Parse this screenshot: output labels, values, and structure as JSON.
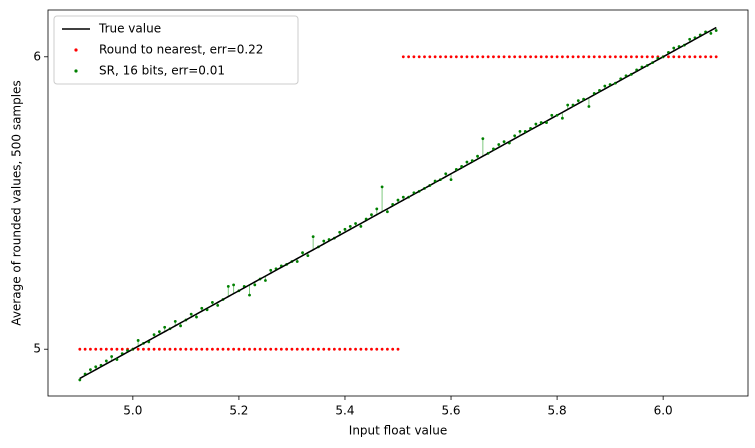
{
  "chart_data": {
    "type": "scatter",
    "x_label": "Input float value",
    "y_label": "Average of rounded values, 500 samples",
    "x": [
      4.9,
      4.91,
      4.92,
      4.93,
      4.94,
      4.95,
      4.96,
      4.97,
      4.98,
      4.99,
      5.0,
      5.01,
      5.02,
      5.03,
      5.04,
      5.05,
      5.06,
      5.07,
      5.08,
      5.09,
      5.1,
      5.11,
      5.12,
      5.13,
      5.14,
      5.15,
      5.16,
      5.17,
      5.18,
      5.19,
      5.2,
      5.21,
      5.22,
      5.23,
      5.24,
      5.25,
      5.26,
      5.27,
      5.28,
      5.29,
      5.3,
      5.31,
      5.32,
      5.33,
      5.34,
      5.35,
      5.36,
      5.37,
      5.38,
      5.39,
      5.4,
      5.41,
      5.42,
      5.43,
      5.44,
      5.45,
      5.46,
      5.47,
      5.48,
      5.49,
      5.5,
      5.51,
      5.52,
      5.53,
      5.54,
      5.55,
      5.56,
      5.57,
      5.58,
      5.59,
      5.6,
      5.61,
      5.62,
      5.63,
      5.64,
      5.65,
      5.66,
      5.67,
      5.68,
      5.69,
      5.7,
      5.71,
      5.72,
      5.73,
      5.74,
      5.75,
      5.76,
      5.77,
      5.78,
      5.79,
      5.8,
      5.81,
      5.82,
      5.83,
      5.84,
      5.85,
      5.86,
      5.87,
      5.88,
      5.89,
      5.9,
      5.91,
      5.92,
      5.93,
      5.94,
      5.95,
      5.96,
      5.97,
      5.98,
      5.99,
      6.0,
      6.01,
      6.02,
      6.03,
      6.04,
      6.05,
      6.06,
      6.07,
      6.08,
      6.09,
      6.1
    ],
    "series": [
      {
        "name": "True value",
        "color": "#000000",
        "style": "line",
        "values": [
          4.9,
          4.91,
          4.92,
          4.93,
          4.94,
          4.95,
          4.96,
          4.97,
          4.98,
          4.99,
          5.0,
          5.01,
          5.02,
          5.03,
          5.04,
          5.05,
          5.06,
          5.07,
          5.08,
          5.09,
          5.1,
          5.11,
          5.12,
          5.13,
          5.14,
          5.15,
          5.16,
          5.17,
          5.18,
          5.19,
          5.2,
          5.21,
          5.22,
          5.23,
          5.24,
          5.25,
          5.26,
          5.27,
          5.28,
          5.29,
          5.3,
          5.31,
          5.32,
          5.33,
          5.34,
          5.35,
          5.36,
          5.37,
          5.38,
          5.39,
          5.4,
          5.41,
          5.42,
          5.43,
          5.44,
          5.45,
          5.46,
          5.47,
          5.48,
          5.49,
          5.5,
          5.51,
          5.52,
          5.53,
          5.54,
          5.55,
          5.56,
          5.57,
          5.58,
          5.59,
          5.6,
          5.61,
          5.62,
          5.63,
          5.64,
          5.65,
          5.66,
          5.67,
          5.68,
          5.69,
          5.7,
          5.71,
          5.72,
          5.73,
          5.74,
          5.75,
          5.76,
          5.77,
          5.78,
          5.79,
          5.8,
          5.81,
          5.82,
          5.83,
          5.84,
          5.85,
          5.86,
          5.87,
          5.88,
          5.89,
          5.9,
          5.91,
          5.92,
          5.93,
          5.94,
          5.95,
          5.96,
          5.97,
          5.98,
          5.99,
          6.0,
          6.01,
          6.02,
          6.03,
          6.04,
          6.05,
          6.06,
          6.07,
          6.08,
          6.09,
          6.1
        ]
      },
      {
        "name": "Round to nearest, err=0.22",
        "color": "#ff0000",
        "style": "dots",
        "values": [
          5,
          5,
          5,
          5,
          5,
          5,
          5,
          5,
          5,
          5,
          5,
          5,
          5,
          5,
          5,
          5,
          5,
          5,
          5,
          5,
          5,
          5,
          5,
          5,
          5,
          5,
          5,
          5,
          5,
          5,
          5,
          5,
          5,
          5,
          5,
          5,
          5,
          5,
          5,
          5,
          5,
          5,
          5,
          5,
          5,
          5,
          5,
          5,
          5,
          5,
          5,
          5,
          5,
          5,
          5,
          5,
          5,
          5,
          5,
          5,
          5,
          6,
          6,
          6,
          6,
          6,
          6,
          6,
          6,
          6,
          6,
          6,
          6,
          6,
          6,
          6,
          6,
          6,
          6,
          6,
          6,
          6,
          6,
          6,
          6,
          6,
          6,
          6,
          6,
          6,
          6,
          6,
          6,
          6,
          6,
          6,
          6,
          6,
          6,
          6,
          6,
          6,
          6,
          6,
          6,
          6,
          6,
          6,
          6,
          6,
          6,
          6,
          6,
          6,
          6,
          6,
          6,
          6,
          6,
          6,
          6
        ]
      },
      {
        "name": "SR, 16 bits, err=0.01",
        "color": "#008000",
        "style": "dots",
        "values": [
          4.895,
          4.915,
          4.93,
          4.94,
          4.945,
          4.96,
          4.975,
          4.965,
          4.985,
          4.995,
          5.0,
          5.03,
          5.02,
          5.025,
          5.05,
          5.06,
          5.075,
          5.07,
          5.095,
          5.08,
          5.1,
          5.12,
          5.11,
          5.14,
          5.135,
          5.16,
          5.15,
          5.17,
          5.215,
          5.22,
          5.2,
          5.215,
          5.185,
          5.22,
          5.24,
          5.235,
          5.27,
          5.275,
          5.285,
          5.29,
          5.3,
          5.3,
          5.33,
          5.32,
          5.385,
          5.35,
          5.37,
          5.375,
          5.38,
          5.4,
          5.41,
          5.42,
          5.43,
          5.42,
          5.445,
          5.46,
          5.48,
          5.555,
          5.47,
          5.495,
          5.51,
          5.52,
          5.52,
          5.535,
          5.54,
          5.55,
          5.56,
          5.575,
          5.58,
          5.6,
          5.58,
          5.615,
          5.625,
          5.64,
          5.645,
          5.66,
          5.72,
          5.67,
          5.685,
          5.7,
          5.71,
          5.705,
          5.73,
          5.745,
          5.745,
          5.755,
          5.77,
          5.775,
          5.775,
          5.8,
          5.8,
          5.79,
          5.835,
          5.835,
          5.85,
          5.855,
          5.83,
          5.875,
          5.885,
          5.9,
          5.905,
          5.91,
          5.925,
          5.935,
          5.94,
          5.955,
          5.965,
          5.97,
          5.98,
          5.995,
          6.0,
          6.015,
          6.03,
          6.035,
          6.04,
          6.06,
          6.065,
          6.075,
          6.085,
          6.08,
          6.09
        ]
      }
    ],
    "xlim": [
      4.84,
      6.16
    ],
    "ylim": [
      4.84,
      6.16
    ],
    "xticks": [
      {
        "value": 5,
        "label": "5.0"
      },
      5.2,
      5.4,
      5.6,
      5.8,
      {
        "value": 6,
        "label": "6.0"
      }
    ],
    "yticks": [
      5,
      6
    ],
    "grid": false,
    "legend": "upper-left"
  }
}
